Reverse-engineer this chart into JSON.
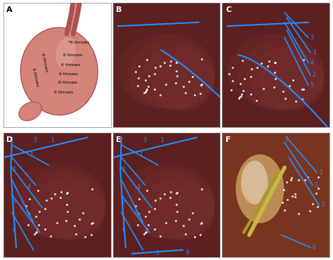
{
  "panels": [
    "A",
    "B",
    "C",
    "D",
    "E",
    "F"
  ],
  "label_color": "white",
  "line_color": "#1E90FF",
  "bg_color": "white",
  "stomach_color": "#d4847a",
  "stomach_outline": "#b05050",
  "endo_bg": "#5c2020",
  "endo_bg2": "#7a3030",
  "surgical_bg": "#7a3520",
  "dpi": 100,
  "figsize": [
    4.74,
    3.7
  ]
}
